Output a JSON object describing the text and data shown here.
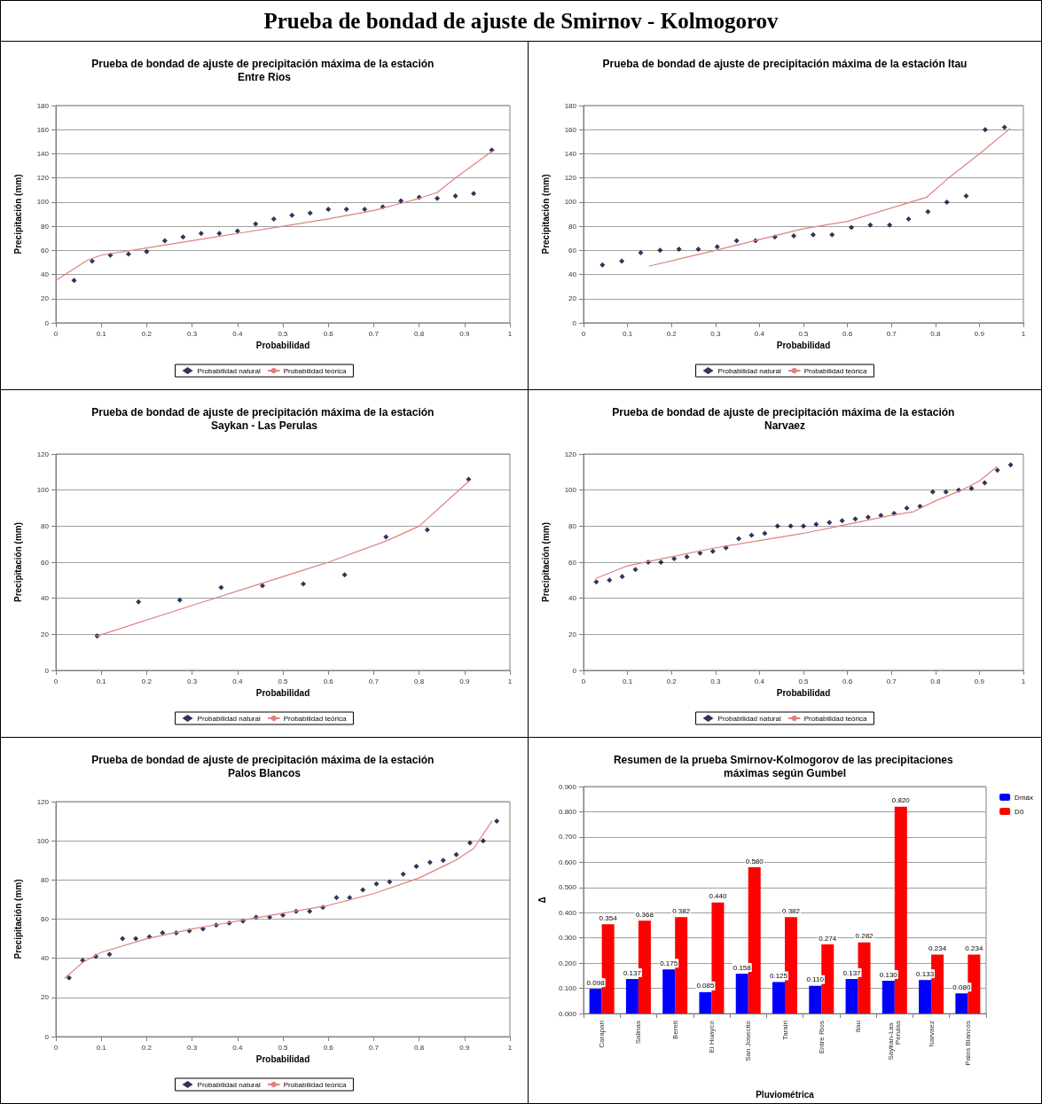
{
  "chart_data": [
    {
      "type": "other",
      "title": "Prueba de bondad de ajuste de Smirnov - Kolmogorov"
    },
    {
      "type": "scatter",
      "title": "Prueba de bondad de ajuste de precipitación máxima de la estación Entre Rios",
      "xlabel": "Probabilidad",
      "ylabel": "Precipitación (mm)",
      "xlim": [
        0,
        1
      ],
      "xticks": [
        0,
        0.1,
        0.2,
        0.3,
        0.4,
        0.5,
        0.6,
        0.7,
        0.8,
        0.9,
        1
      ],
      "ylim": [
        0,
        180
      ],
      "yticks": [
        0,
        20,
        40,
        60,
        80,
        100,
        120,
        140,
        160,
        180
      ],
      "grid": "y",
      "legend": "bottom",
      "series": [
        {
          "name": "Probabilidad natural",
          "type": "scatter",
          "marker": "diamond",
          "color": "#000033",
          "x": [
            0.04,
            0.08,
            0.12,
            0.16,
            0.2,
            0.24,
            0.28,
            0.32,
            0.36,
            0.4,
            0.44,
            0.48,
            0.52,
            0.56,
            0.6,
            0.64,
            0.68,
            0.72,
            0.76,
            0.8,
            0.84,
            0.88,
            0.92,
            0.96
          ],
          "values": [
            35,
            51,
            56,
            57,
            59,
            68,
            71,
            74,
            74,
            76,
            82,
            86,
            89,
            91,
            94,
            94,
            94,
            96,
            101,
            104,
            103,
            105,
            107,
            143
          ]
        },
        {
          "name": "Probabilidad teórica",
          "type": "line",
          "marker": "none",
          "color": "#e08080",
          "x": [
            0,
            0.07,
            0.1,
            0.2,
            0.4,
            0.5,
            0.6,
            0.7,
            0.76,
            0.8,
            0.84,
            0.88,
            0.96
          ],
          "values": [
            35,
            52,
            56,
            62,
            74,
            80,
            86,
            93,
            99,
            103,
            108,
            120,
            142
          ]
        }
      ]
    },
    {
      "type": "scatter",
      "title": "Prueba de bondad de ajuste de precipitación máxima de la estación Itau",
      "xlabel": "Probabilidad",
      "ylabel": "Precipitación (mm)",
      "xlim": [
        0,
        1
      ],
      "xticks": [
        0,
        0.1,
        0.2,
        0.3,
        0.4,
        0.5,
        0.6,
        0.7,
        0.8,
        0.9,
        1
      ],
      "ylim": [
        0,
        180
      ],
      "yticks": [
        0,
        20,
        40,
        60,
        80,
        100,
        120,
        140,
        160,
        180
      ],
      "grid": "y",
      "legend": "bottom",
      "series": [
        {
          "name": "Probabilidad natural",
          "type": "scatter",
          "marker": "diamond",
          "color": "#000033",
          "x": [
            0.043,
            0.087,
            0.13,
            0.174,
            0.217,
            0.261,
            0.304,
            0.348,
            0.391,
            0.435,
            0.478,
            0.522,
            0.565,
            0.609,
            0.652,
            0.696,
            0.739,
            0.783,
            0.826,
            0.87,
            0.913,
            0.957
          ],
          "values": [
            48,
            51,
            58,
            60,
            61,
            61,
            63,
            68,
            68,
            71,
            72,
            73,
            73,
            79,
            81,
            81,
            86,
            92,
            100,
            105,
            160,
            162
          ]
        },
        {
          "name": "Probabilidad teórica",
          "type": "line",
          "marker": "none",
          "color": "#e08080",
          "x": [
            0.15,
            0.3,
            0.5,
            0.6,
            0.78,
            0.83,
            0.9,
            0.97
          ],
          "values": [
            47,
            60,
            78,
            84,
            104,
            120,
            140,
            161
          ]
        }
      ]
    },
    {
      "type": "scatter",
      "title": "Prueba de bondad de ajuste de precipitación máxima de la estación Saykan - Las Perulas",
      "xlabel": "Probabilidad",
      "ylabel": "Precipitación (mm)",
      "xlim": [
        0,
        1
      ],
      "xticks": [
        0,
        0.1,
        0.2,
        0.3,
        0.4,
        0.5,
        0.6,
        0.7,
        0.8,
        0.9,
        1
      ],
      "ylim": [
        0,
        120
      ],
      "yticks": [
        0,
        20,
        40,
        60,
        80,
        100,
        120
      ],
      "grid": "y",
      "legend": "bottom",
      "series": [
        {
          "name": "Probabilidad natural",
          "type": "scatter",
          "marker": "diamond",
          "color": "#000033",
          "x": [
            0.091,
            0.182,
            0.273,
            0.364,
            0.455,
            0.545,
            0.636,
            0.727,
            0.818,
            0.909
          ],
          "values": [
            19,
            38,
            39,
            46,
            47,
            48,
            53,
            74,
            78,
            106
          ]
        },
        {
          "name": "Probabilidad teórica",
          "type": "line",
          "marker": "none",
          "color": "#e08080",
          "x": [
            0.09,
            0.3,
            0.45,
            0.55,
            0.6,
            0.73,
            0.8,
            0.91
          ],
          "values": [
            19,
            36,
            48,
            56,
            60,
            72,
            80,
            105
          ]
        }
      ]
    },
    {
      "type": "scatter",
      "title": "Prueba de bondad de ajuste de precipitación máxima de la estación Narvaez",
      "xlabel": "Probabilidad",
      "ylabel": "Precipitación (mm)",
      "xlim": [
        0,
        1
      ],
      "xticks": [
        0,
        0.1,
        0.2,
        0.3,
        0.4,
        0.5,
        0.6,
        0.7,
        0.8,
        0.9,
        1
      ],
      "ylim": [
        0,
        120
      ],
      "yticks": [
        0,
        20,
        40,
        60,
        80,
        100,
        120
      ],
      "grid": "y",
      "legend": "bottom",
      "series": [
        {
          "name": "Probabilidad natural",
          "type": "scatter",
          "marker": "diamond",
          "color": "#000033",
          "x": [
            0.029,
            0.059,
            0.088,
            0.118,
            0.147,
            0.176,
            0.206,
            0.235,
            0.265,
            0.294,
            0.324,
            0.353,
            0.382,
            0.412,
            0.441,
            0.471,
            0.5,
            0.529,
            0.559,
            0.588,
            0.618,
            0.647,
            0.676,
            0.706,
            0.735,
            0.765,
            0.794,
            0.824,
            0.853,
            0.882,
            0.912,
            0.941,
            0.971
          ],
          "values": [
            49,
            50,
            52,
            56,
            60,
            60,
            62,
            63,
            65,
            66,
            68,
            73,
            75,
            76,
            80,
            80,
            80,
            81,
            82,
            83,
            84,
            85,
            86,
            87,
            90,
            91,
            99,
            99,
            100,
            101,
            104,
            111,
            114
          ]
        },
        {
          "name": "Probabilidad teórica",
          "type": "line",
          "marker": "none",
          "color": "#e08080",
          "x": [
            0.028,
            0.1,
            0.2,
            0.3,
            0.4,
            0.5,
            0.6,
            0.7,
            0.75,
            0.8,
            0.86,
            0.9,
            0.94
          ],
          "values": [
            51,
            58,
            63,
            68,
            72,
            76,
            81,
            86,
            88,
            94,
            100,
            105,
            113
          ]
        }
      ]
    },
    {
      "type": "scatter",
      "title": "Prueba de bondad de ajuste de precipitación máxima de la estación Palos Blancos",
      "xlabel": "Probabilidad",
      "ylabel": "Precipitación (mm)",
      "xlim": [
        0,
        1
      ],
      "xticks": [
        0,
        0.1,
        0.2,
        0.3,
        0.4,
        0.5,
        0.6,
        0.7,
        0.8,
        0.9,
        1
      ],
      "ylim": [
        0,
        120
      ],
      "yticks": [
        0,
        20,
        40,
        60,
        80,
        100,
        120
      ],
      "grid": "y",
      "legend": "bottom",
      "series": [
        {
          "name": "Probabilidad natural",
          "type": "scatter",
          "marker": "diamond",
          "color": "#000033",
          "x": [
            0.029,
            0.059,
            0.088,
            0.118,
            0.147,
            0.176,
            0.206,
            0.235,
            0.265,
            0.294,
            0.324,
            0.353,
            0.382,
            0.412,
            0.441,
            0.471,
            0.5,
            0.529,
            0.559,
            0.588,
            0.618,
            0.647,
            0.676,
            0.706,
            0.735,
            0.765,
            0.794,
            0.824,
            0.853,
            0.882,
            0.912,
            0.941,
            0.971
          ],
          "values": [
            30,
            39,
            41,
            42,
            50,
            50,
            51,
            53,
            53,
            54,
            55,
            57,
            58,
            59,
            61,
            61,
            62,
            64,
            64,
            66,
            71,
            71,
            75,
            78,
            79,
            83,
            87,
            89,
            90,
            93,
            99,
            100,
            110
          ]
        },
        {
          "name": "Probabilidad teórica",
          "type": "line",
          "marker": "none",
          "color": "#e08080",
          "x": [
            0.02,
            0.06,
            0.1,
            0.2,
            0.3,
            0.4,
            0.5,
            0.6,
            0.7,
            0.8,
            0.88,
            0.92,
            0.96
          ],
          "values": [
            30,
            38,
            43,
            50,
            55,
            59,
            63,
            67,
            73,
            81,
            90,
            96,
            110
          ]
        }
      ]
    },
    {
      "type": "bar",
      "title": "Resumen de la prueba Smirnov-Kolmogorov de las precipitaciones máximas según Gumbel",
      "xlabel": "Pluviométrica",
      "ylabel": "Δ",
      "categories": [
        "Carapari",
        "Salinas",
        "Bereti",
        "El Huayco",
        "San Josecito",
        "Tarairi",
        "Entre Rios",
        "Itau",
        "Saykan-Las Perulas",
        "Narvaez",
        "Palos Blancos"
      ],
      "ylim": [
        0,
        0.9
      ],
      "yticks": [
        {
          "value": 0,
          "label": "0.000"
        },
        {
          "value": 0.1,
          "label": "0.100"
        },
        {
          "value": 0.2,
          "label": "0.200"
        },
        {
          "value": 0.3,
          "label": "0.300"
        },
        {
          "value": 0.4,
          "label": "0.400"
        },
        {
          "value": 0.5,
          "label": "0.500"
        },
        {
          "value": 0.6,
          "label": "0.600"
        },
        {
          "value": 0.7,
          "label": "0.700"
        },
        {
          "value": 0.8,
          "label": "0.800"
        },
        {
          "value": 0.9,
          "label": "0.900"
        }
      ],
      "grid": "y",
      "legend": "top right",
      "series": [
        {
          "name": "Dmáx",
          "color": "#0000ff",
          "values": [
            0.098,
            0.137,
            0.175,
            0.085,
            0.158,
            0.125,
            0.11,
            0.137,
            0.13,
            0.133,
            0.08
          ],
          "value_labels": [
            "0.098",
            "0.137",
            "0.175",
            "0.085",
            "0.158",
            "0.125",
            "0.110",
            "0.137",
            "0.130",
            "0.133",
            "0.080"
          ]
        },
        {
          "name": "D0",
          "color": "#ff0000",
          "values": [
            0.354,
            0.368,
            0.382,
            0.44,
            0.58,
            0.382,
            0.274,
            0.282,
            0.82,
            0.234,
            0.234
          ],
          "value_labels": [
            "0.354",
            "0.368",
            "0.382",
            "0.440",
            "0.580",
            "0.382",
            "0.274",
            "0.282",
            "0.820",
            "0.234",
            "0.234"
          ]
        }
      ]
    }
  ]
}
